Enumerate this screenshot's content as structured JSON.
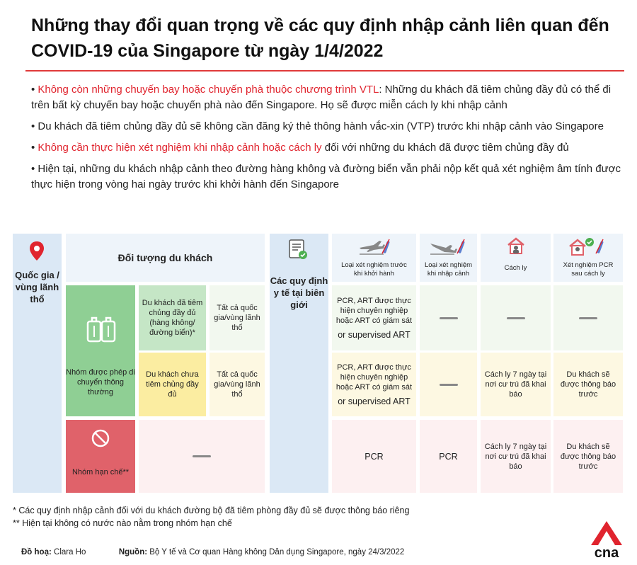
{
  "title": "Những thay đổi quan trọng về các quy định nhập cảnh liên quan đến COVID-19 của Singapore từ ngày 1/4/2022",
  "bullets": [
    {
      "highlight": "Không còn những chuyến bay hoặc chuyến phà thuộc chương trình VTL",
      "text": ": Những du khách đã tiêm chủng đầy đủ có thể đi trên bất kỳ chuyến bay hoặc chuyến phà nào đến Singapore. Họ sẽ được miễn cách ly khi nhập cảnh"
    },
    {
      "highlight": "",
      "text": "Du khách đã tiêm chủng đầy đủ sẽ không cần đăng ký thẻ thông hành vắc-xin (VTP) trước khi nhập cảnh vào Singapore"
    },
    {
      "highlight": "Không cần thực hiện xét nghiệm khi nhập cảnh hoặc cách ly",
      "text": " đối với những du khách đã được tiêm chủng đầy đủ"
    },
    {
      "highlight": "",
      "text": "Hiện tại, những du khách nhập cảnh theo đường hàng không và đường biển vẫn phải nộp kết quả xét nghiệm âm tính được thực hiện trong vòng hai ngày trước khi khởi hành đến Singapore"
    }
  ],
  "table": {
    "country_header": "Quốc gia / vùng lãnh thổ",
    "traveller_header": "Đối tượng du khách",
    "rules_header": "Các quy định y tế tại biên giới",
    "col_pre_departure": "Loại xét nghiệm trước khi khởi hành",
    "col_on_arrival": "Loại xét nghiệm khi nhập cảnh",
    "col_quarantine": "Cách ly",
    "col_pcr_after": "Xét nghiệm PCR sau cách ly",
    "group_general": "Nhóm được phép di chuyển thông thường",
    "group_restricted": "Nhóm hạn chế**",
    "vaccinated": "Du khách đã tiêm chủng đầy đủ (hàng không/đường biển)*",
    "unvaccinated": "Du khách chưa tiêm chủng đầy đủ",
    "all_countries": "Tất cả quốc gia/vùng lãnh thổ",
    "pcr_art": "PCR, ART được thực hiện chuyên nghiệp hoặc ART có giám sát",
    "supervised_art": "or supervised ART",
    "quarantine_7": "Cách ly 7 ngày tại nơi cư trú đã khai báo",
    "notify_later": "Du khách sẽ được thông báo trước",
    "pcr": "PCR"
  },
  "footnotes": [
    "*   Các quy định nhập cảnh đối với du khách đường bộ đã tiêm phòng đầy đủ sẽ được thông báo riêng",
    "**  Hiện tại không có nước nào nằm trong nhóm hạn chế"
  ],
  "credits": {
    "graphics_label": "Đồ hoạ:",
    "graphics_name": "Clara Ho",
    "source_label": "Nguồn:",
    "source_text": "Bộ Y tế và Cơ quan Hàng không Dân dụng Singapore, ngày 24/3/2022"
  },
  "logo_text": "cna",
  "colors": {
    "accent_red": "#e03a3a",
    "highlight_red": "#e0242e",
    "header_blue": "#dbe8f5",
    "general_green": "#8fcf94",
    "unvaccinated_yellow": "#fbeda1",
    "restricted_red": "#e0626a"
  }
}
